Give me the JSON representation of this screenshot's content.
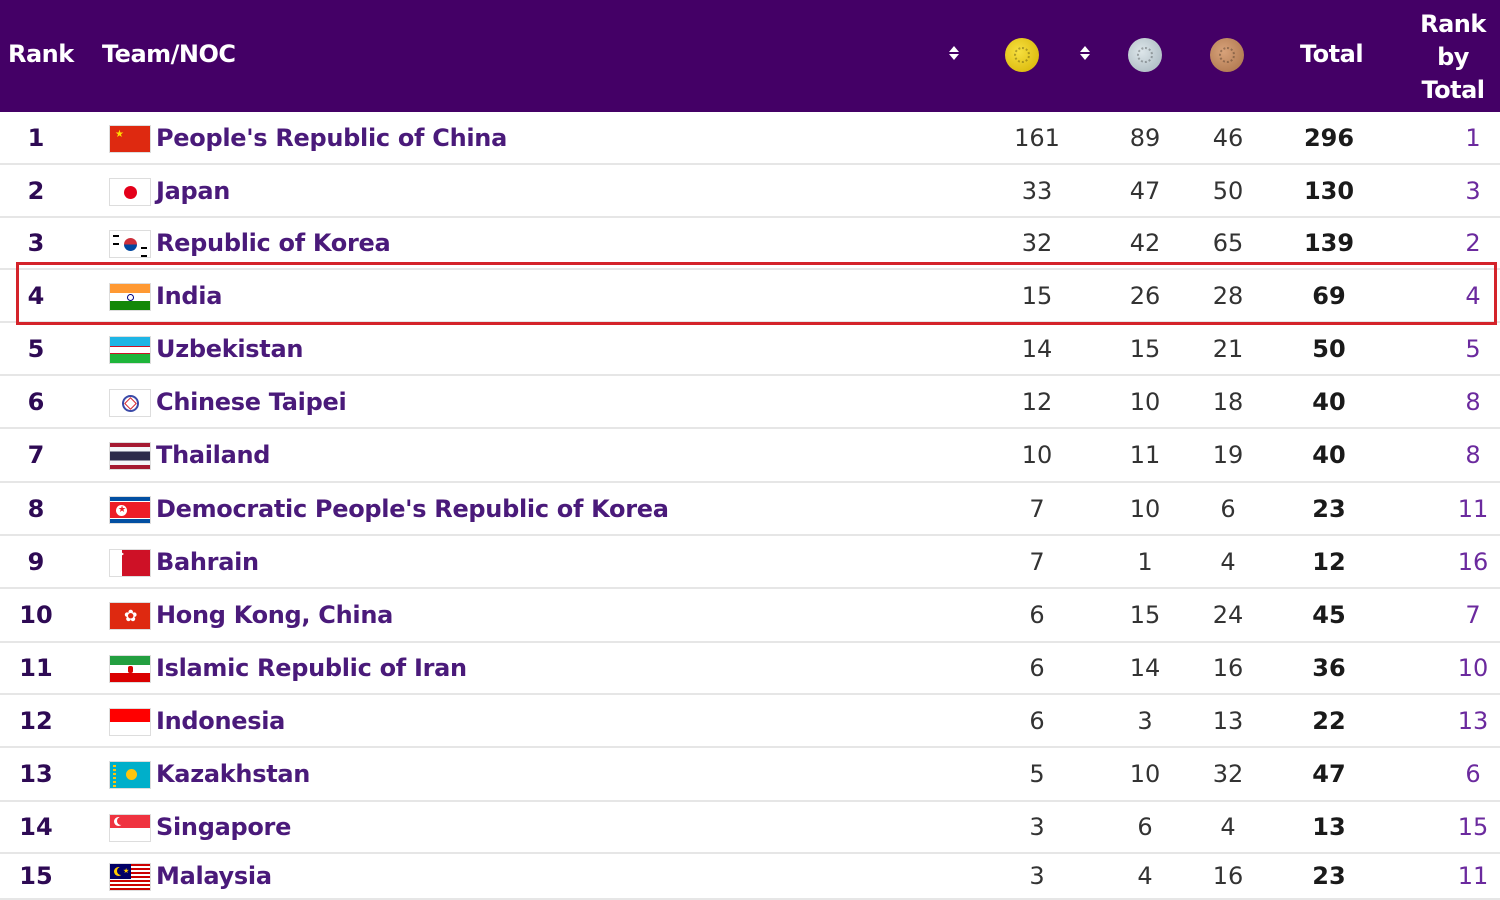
{
  "header": {
    "rank": "Rank",
    "team": "Team/NOC",
    "total": "Total",
    "rank_by_total": [
      "Rank",
      "by",
      "Total"
    ]
  },
  "colors": {
    "header_bg": "#440066",
    "highlight": "#d4232a"
  },
  "rows": [
    {
      "rank": "1",
      "team": "People's Republic of China",
      "gold": "161",
      "silver": "89",
      "bronze": "46",
      "total": "296",
      "rank_by_total": "1",
      "flag": "china"
    },
    {
      "rank": "2",
      "team": "Japan",
      "gold": "33",
      "silver": "47",
      "bronze": "50",
      "total": "130",
      "rank_by_total": "3",
      "flag": "japan"
    },
    {
      "rank": "3",
      "team": "Republic of Korea",
      "gold": "32",
      "silver": "42",
      "bronze": "65",
      "total": "139",
      "rank_by_total": "2",
      "flag": "korea"
    },
    {
      "rank": "4",
      "team": "India",
      "gold": "15",
      "silver": "26",
      "bronze": "28",
      "total": "69",
      "rank_by_total": "4",
      "flag": "india"
    },
    {
      "rank": "5",
      "team": "Uzbekistan",
      "gold": "14",
      "silver": "15",
      "bronze": "21",
      "total": "50",
      "rank_by_total": "5",
      "flag": "uzbekistan"
    },
    {
      "rank": "6",
      "team": "Chinese Taipei",
      "gold": "12",
      "silver": "10",
      "bronze": "18",
      "total": "40",
      "rank_by_total": "8",
      "flag": "taipei"
    },
    {
      "rank": "7",
      "team": "Thailand",
      "gold": "10",
      "silver": "11",
      "bronze": "19",
      "total": "40",
      "rank_by_total": "8",
      "flag": "thailand"
    },
    {
      "rank": "8",
      "team": "Democratic People's Republic of Korea",
      "gold": "7",
      "silver": "10",
      "bronze": "6",
      "total": "23",
      "rank_by_total": "11",
      "flag": "dprk"
    },
    {
      "rank": "9",
      "team": "Bahrain",
      "gold": "7",
      "silver": "1",
      "bronze": "4",
      "total": "12",
      "rank_by_total": "16",
      "flag": "bahrain"
    },
    {
      "rank": "10",
      "team": "Hong Kong, China",
      "gold": "6",
      "silver": "15",
      "bronze": "24",
      "total": "45",
      "rank_by_total": "7",
      "flag": "hongkong"
    },
    {
      "rank": "11",
      "team": "Islamic Republic of Iran",
      "gold": "6",
      "silver": "14",
      "bronze": "16",
      "total": "36",
      "rank_by_total": "10",
      "flag": "iran"
    },
    {
      "rank": "12",
      "team": "Indonesia",
      "gold": "6",
      "silver": "3",
      "bronze": "13",
      "total": "22",
      "rank_by_total": "13",
      "flag": "indonesia"
    },
    {
      "rank": "13",
      "team": "Kazakhstan",
      "gold": "5",
      "silver": "10",
      "bronze": "32",
      "total": "47",
      "rank_by_total": "6",
      "flag": "kazakhstan"
    },
    {
      "rank": "14",
      "team": "Singapore",
      "gold": "3",
      "silver": "6",
      "bronze": "4",
      "total": "13",
      "rank_by_total": "15",
      "flag": "singapore"
    },
    {
      "rank": "15",
      "team": "Malaysia",
      "gold": "3",
      "silver": "4",
      "bronze": "16",
      "total": "23",
      "rank_by_total": "11",
      "flag": "malaysia"
    }
  ],
  "highlighted_team": "India"
}
